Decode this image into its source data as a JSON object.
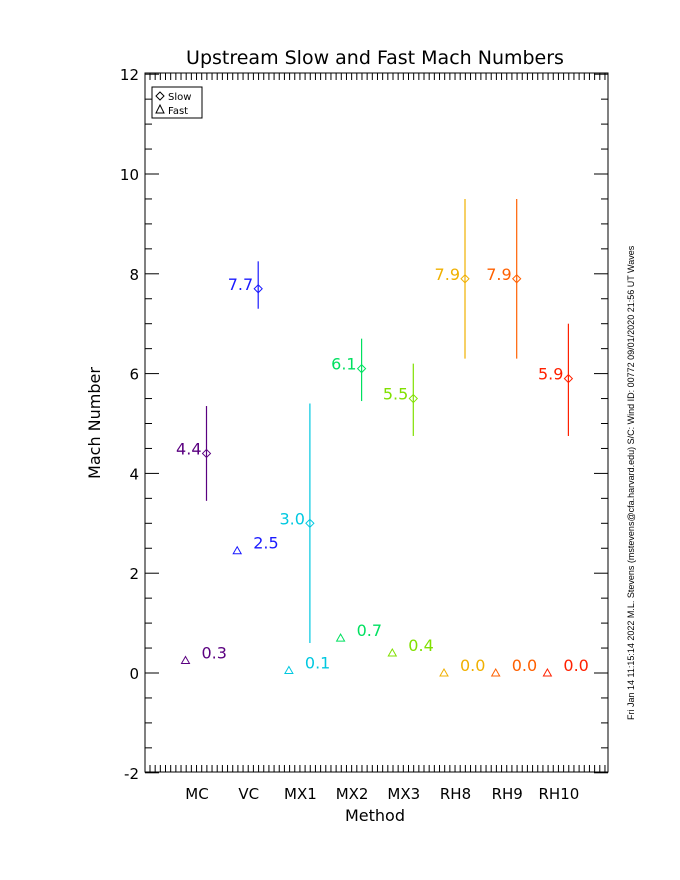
{
  "chart_data": {
    "type": "scatter",
    "title": "Upstream Slow and Fast Mach Numbers",
    "xlabel": "Method",
    "ylabel": "Mach Number",
    "categories": [
      "MC",
      "VC",
      "MX1",
      "MX2",
      "MX3",
      "RH8",
      "RH9",
      "RH10"
    ],
    "ylim": [
      -2,
      12
    ],
    "yticks": [
      "-2",
      "0",
      "2",
      "4",
      "6",
      "8",
      "10",
      "12"
    ],
    "legend": {
      "placement": "top-left",
      "entries": [
        "Slow",
        "Fast"
      ]
    },
    "colors": [
      "#5a0080",
      "#1a1aff",
      "#00c8e0",
      "#00e060",
      "#80e000",
      "#f0b000",
      "#ff6000",
      "#ff2000"
    ],
    "series": [
      {
        "name": "Slow",
        "marker": "diamond",
        "values": [
          4.4,
          7.7,
          3.0,
          6.1,
          5.5,
          7.9,
          7.9,
          5.9
        ],
        "error_low": [
          3.45,
          7.3,
          0.6,
          5.45,
          4.75,
          6.3,
          6.3,
          4.75
        ],
        "error_high": [
          5.35,
          8.25,
          5.4,
          6.7,
          6.2,
          9.5,
          9.5,
          7.0
        ],
        "labels": [
          "4.4",
          "7.7",
          "3.0",
          "6.1",
          "5.5",
          "7.9",
          "7.9",
          "5.9"
        ]
      },
      {
        "name": "Fast",
        "marker": "triangle",
        "values": [
          0.25,
          2.45,
          0.05,
          0.7,
          0.4,
          0.0,
          0.0,
          0.0
        ],
        "labels": [
          "0.3",
          "2.5",
          "0.1",
          "0.7",
          "0.4",
          "0.0",
          "0.0",
          "0.0"
        ]
      }
    ]
  },
  "side_note": "Fri Jan 14 11:15:14 2022  M.L. Stevens (mstevens@cfa.harvard.edu)  S/C: Wind ID: 00772 09/01/2020  21:56 UT Waves"
}
